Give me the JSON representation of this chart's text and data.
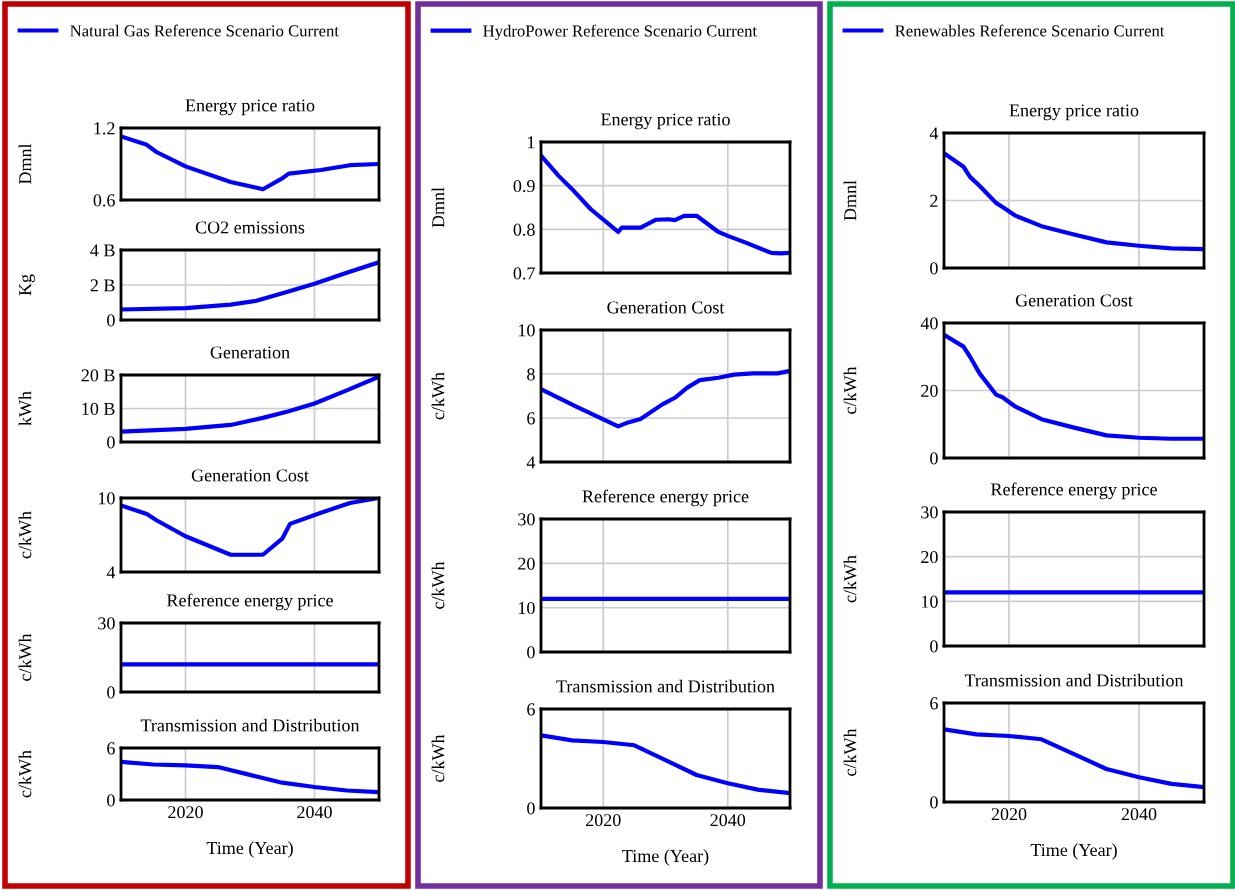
{
  "chart_data": [
    {
      "type": "line",
      "title": "Energy price ratio",
      "ylabel": "Dmnl",
      "x": [
        2010,
        2014,
        2015.5,
        2020,
        2027,
        2032,
        2035,
        2036,
        2041,
        2045.5,
        2050
      ],
      "series": [
        {
          "name": "Natural Gas Reference Scenario Current",
          "color": "#0000ff",
          "values": [
            1.13,
            1.06,
            1.0,
            0.88,
            0.75,
            0.69,
            0.78,
            0.82,
            0.85,
            0.89,
            0.9
          ]
        }
      ],
      "xlim": [
        2010,
        2050
      ],
      "xticks": [
        2020,
        2040
      ],
      "ylim": [
        0.6,
        1.2
      ],
      "yticks": [
        0.6,
        1.2
      ],
      "grid": true,
      "legend": "top",
      "tick_labels": "y"
    },
    {
      "type": "line",
      "title": "CO2 emissions",
      "ylabel": "Kg",
      "x": [
        2010,
        2020,
        2027,
        2031,
        2035.7,
        2040,
        2045,
        2050
      ],
      "series": [
        {
          "color": "#0000ff",
          "values": [
            600000000.0,
            680000000.0,
            880000000.0,
            1100000000.0,
            1600000000.0,
            2070000000.0,
            2700000000.0,
            3300000000.0
          ]
        }
      ],
      "xlim": [
        2010,
        2050
      ],
      "xticks": [
        2020,
        2040
      ],
      "ylim": [
        0,
        4000000000.0
      ],
      "yticks": [
        0,
        {
          "value": 2000000000.0,
          "label": "2 B"
        },
        {
          "value": 4000000000.0,
          "label": "4 B"
        }
      ],
      "grid": true,
      "tick_labels": "y"
    },
    {
      "type": "line",
      "title": "Generation",
      "ylabel": "kWh",
      "x": [
        2010,
        2020,
        2027,
        2032,
        2036,
        2040,
        2045,
        2050
      ],
      "series": [
        {
          "color": "#0000ff",
          "values": [
            3100000000.0,
            3900000000.0,
            5100000000.0,
            7200000000.0,
            9200000000.0,
            11500000000.0,
            15400000000.0,
            19500000000.0
          ]
        }
      ],
      "xlim": [
        2010,
        2050
      ],
      "xticks": [
        2020,
        2040
      ],
      "ylim": [
        0,
        20000000000.0
      ],
      "yticks": [
        0,
        {
          "value": 10000000000.0,
          "label": "10 B"
        },
        {
          "value": 20000000000.0,
          "label": "20 B"
        }
      ],
      "grid": true,
      "tick_labels": "y"
    },
    {
      "type": "line",
      "title": "Generation Cost",
      "ylabel": "c/kWh",
      "x": [
        2010,
        2014,
        2015.5,
        2020,
        2027,
        2032,
        2035,
        2036.2,
        2041,
        2045.5,
        2050
      ],
      "series": [
        {
          "color": "#0000ff",
          "values": [
            9.4,
            8.7,
            8.2,
            6.9,
            5.4,
            5.4,
            6.7,
            7.9,
            8.8,
            9.6,
            10.0
          ]
        }
      ],
      "xlim": [
        2010,
        2050
      ],
      "xticks": [
        2020,
        2040
      ],
      "ylim": [
        4,
        10
      ],
      "yticks": [
        4,
        10
      ],
      "grid": true,
      "tick_labels": "y"
    },
    {
      "type": "line",
      "title": "Reference energy price",
      "ylabel": "c/kWh",
      "x": [
        2010,
        2050
      ],
      "series": [
        {
          "color": "#0000ff",
          "values": [
            12,
            12
          ]
        }
      ],
      "xlim": [
        2010,
        2050
      ],
      "xticks": [
        2020,
        2040
      ],
      "ylim": [
        0,
        30
      ],
      "yticks": [
        0,
        30
      ],
      "grid": true,
      "tick_labels": "y"
    },
    {
      "type": "line",
      "title": "Transmission and Distribution",
      "ylabel": "c/kWh",
      "xlabel": "Time (Year)",
      "x": [
        2010,
        2015,
        2020,
        2025,
        2030,
        2035,
        2040,
        2045,
        2050
      ],
      "series": [
        {
          "color": "#0000ff",
          "values": [
            4.4,
            4.1,
            4.0,
            3.8,
            2.9,
            2.0,
            1.5,
            1.1,
            0.9
          ]
        }
      ],
      "xlim": [
        2010,
        2050
      ],
      "xticks": [
        2020,
        2040
      ],
      "ylim": [
        0,
        6
      ],
      "yticks": [
        0,
        6
      ],
      "grid": true
    },
    {
      "type": "line",
      "title": "Energy price ratio",
      "ylabel": "Dmnl",
      "x": [
        2010,
        2012.8,
        2015,
        2018,
        2022.4,
        2023,
        2026,
        2028.5,
        2030.5,
        2031.5,
        2033,
        2035,
        2038.5,
        2040,
        2043,
        2047,
        2048.5,
        2050
      ],
      "series": [
        {
          "name": "HydroPower Reference Scenario Current",
          "color": "#0000ff",
          "values": [
            0.969,
            0.923,
            0.892,
            0.846,
            0.794,
            0.804,
            0.804,
            0.822,
            0.823,
            0.821,
            0.831,
            0.831,
            0.794,
            0.785,
            0.769,
            0.746,
            0.745,
            0.746
          ]
        }
      ],
      "xlim": [
        2010,
        2050
      ],
      "xticks": [
        2020,
        2040
      ],
      "ylim": [
        0.7,
        1
      ],
      "yticks": [
        0.7,
        0.8,
        0.9,
        1
      ],
      "grid": true,
      "legend": "top",
      "tick_labels": "y"
    },
    {
      "type": "line",
      "title": "Generation Cost",
      "ylabel": "c/kWh",
      "x": [
        2010,
        2015.5,
        2022.4,
        2024,
        2026,
        2029.5,
        2031.5,
        2033.5,
        2035.5,
        2038.5,
        2041,
        2044,
        2048,
        2050
      ],
      "series": [
        {
          "color": "#0000ff",
          "values": [
            7.31,
            6.54,
            5.62,
            5.8,
            5.95,
            6.62,
            6.92,
            7.38,
            7.72,
            7.83,
            7.97,
            8.03,
            8.03,
            8.14
          ]
        }
      ],
      "xlim": [
        2010,
        2050
      ],
      "xticks": [
        2020,
        2040
      ],
      "ylim": [
        4,
        10
      ],
      "yticks": [
        4,
        6,
        8,
        10
      ],
      "grid": true,
      "tick_labels": "y"
    },
    {
      "type": "line",
      "title": "Reference energy price",
      "ylabel": "c/kWh",
      "x": [
        2010,
        2050
      ],
      "series": [
        {
          "color": "#0000ff",
          "values": [
            12,
            12
          ]
        }
      ],
      "xlim": [
        2010,
        2050
      ],
      "xticks": [
        2020,
        2040
      ],
      "ylim": [
        0,
        30
      ],
      "yticks": [
        0,
        10,
        20,
        30
      ],
      "grid": true,
      "tick_labels": "y"
    },
    {
      "type": "line",
      "title": "Transmission and Distribution",
      "ylabel": "c/kWh",
      "xlabel": "Time (Year)",
      "x": [
        2010,
        2015,
        2020,
        2025,
        2030,
        2035,
        2040,
        2045,
        2050
      ],
      "series": [
        {
          "color": "#0000ff",
          "values": [
            4.4,
            4.1,
            4.0,
            3.8,
            2.9,
            2.0,
            1.5,
            1.1,
            0.9
          ]
        }
      ],
      "xlim": [
        2010,
        2050
      ],
      "xticks": [
        2020,
        2040
      ],
      "ylim": [
        0,
        6
      ],
      "yticks": [
        0,
        6
      ],
      "grid": true
    },
    {
      "type": "line",
      "title": "Energy price ratio",
      "ylabel": "Dmnl",
      "x": [
        2010,
        2013,
        2014,
        2015.5,
        2018,
        2019,
        2021,
        2025,
        2030,
        2035,
        2040,
        2045,
        2050
      ],
      "series": [
        {
          "name": "Renewables Reference Scenario Current",
          "color": "#0000ff",
          "values": [
            3.4,
            3.0,
            2.7,
            2.43,
            1.93,
            1.81,
            1.55,
            1.24,
            0.99,
            0.76,
            0.66,
            0.58,
            0.56
          ]
        }
      ],
      "xlim": [
        2010,
        2050
      ],
      "xticks": [
        2020,
        2040
      ],
      "ylim": [
        0,
        4
      ],
      "yticks": [
        0,
        2,
        4
      ],
      "grid": true,
      "legend": "top",
      "tick_labels": "y"
    },
    {
      "type": "line",
      "title": "Generation Cost",
      "ylabel": "c/kWh",
      "x": [
        2010,
        2013,
        2014,
        2015.5,
        2018,
        2019,
        2021,
        2025,
        2030,
        2035,
        2040,
        2045,
        2050
      ],
      "series": [
        {
          "color": "#0000ff",
          "values": [
            36.5,
            33,
            30,
            25,
            18.8,
            18,
            15.2,
            11.5,
            9,
            6.7,
            6.0,
            5.7,
            5.7
          ]
        }
      ],
      "xlim": [
        2010,
        2050
      ],
      "xticks": [
        2020,
        2040
      ],
      "ylim": [
        0,
        40
      ],
      "yticks": [
        0,
        20,
        40
      ],
      "grid": true,
      "tick_labels": "y"
    },
    {
      "type": "line",
      "title": "Reference energy price",
      "ylabel": "c/kWh",
      "x": [
        2010,
        2050
      ],
      "series": [
        {
          "color": "#0000ff",
          "values": [
            12,
            12
          ]
        }
      ],
      "xlim": [
        2010,
        2050
      ],
      "xticks": [
        2020,
        2040
      ],
      "ylim": [
        0,
        30
      ],
      "yticks": [
        0,
        10,
        20,
        30
      ],
      "grid": true,
      "tick_labels": "y"
    },
    {
      "type": "line",
      "title": "Transmission and Distribution",
      "ylabel": "c/kWh",
      "xlabel": "Time (Year)",
      "x": [
        2010,
        2015,
        2020,
        2025,
        2030,
        2035,
        2040,
        2045,
        2050
      ],
      "series": [
        {
          "color": "#0000ff",
          "values": [
            4.4,
            4.1,
            4.0,
            3.8,
            2.9,
            2.0,
            1.5,
            1.1,
            0.9
          ]
        }
      ],
      "xlim": [
        2010,
        2050
      ],
      "xticks": [
        2020,
        2040
      ],
      "ylim": [
        0,
        6
      ],
      "yticks": [
        0,
        6
      ],
      "grid": true
    }
  ]
}
